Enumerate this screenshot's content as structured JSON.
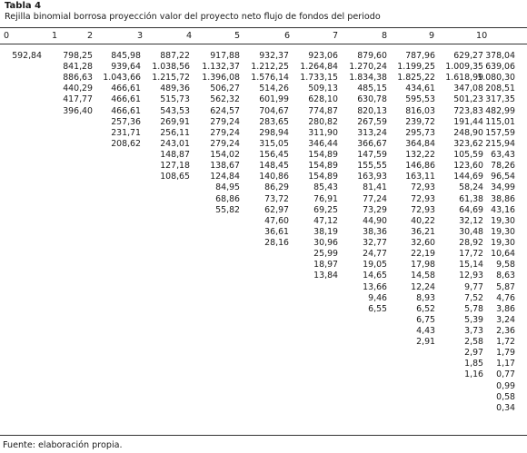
{
  "table": {
    "label": "Tabla 4",
    "caption": "Rejilla binomial borrosa proyección valor del proyecto neto flujo de fondos del periodo",
    "headers": [
      "0",
      "1",
      "2",
      "3",
      "4",
      "5",
      "6",
      "7",
      "8",
      "9",
      "10"
    ],
    "columns": [
      [
        "592,84"
      ],
      [
        "798,25",
        "841,28",
        "886,63",
        "440,29",
        "417,77",
        "396,40"
      ],
      [
        "845,98",
        "939,64",
        "1.043,66",
        "466,61",
        "466,61",
        "466,61",
        "257,36",
        "231,71",
        "208,62"
      ],
      [
        "887,22",
        "1.038,56",
        "1.215,72",
        "489,36",
        "515,73",
        "543,53",
        "269,91",
        "256,11",
        "243,01",
        "148,87",
        "127,18",
        "108,65"
      ],
      [
        "917,88",
        "1.132,37",
        "1.396,08",
        "506,27",
        "562,32",
        "624,57",
        "279,24",
        "279,24",
        "279,24",
        "154,02",
        "138,67",
        "124,84",
        "84,95",
        "68,86",
        "55,82"
      ],
      [
        "932,37",
        "1.212,25",
        "1.576,14",
        "514,26",
        "601,99",
        "704,67",
        "283,65",
        "298,94",
        "315,05",
        "156,45",
        "148,45",
        "140,86",
        "86,29",
        "73,72",
        "62,97",
        "47,60",
        "36,61",
        "28,16"
      ],
      [
        "923,06",
        "1.264,84",
        "1.733,15",
        "509,13",
        "628,10",
        "774,87",
        "280,82",
        "311,90",
        "346,44",
        "154,89",
        "154,89",
        "154,89",
        "85,43",
        "76,91",
        "69,25",
        "47,12",
        "38,19",
        "30,96",
        "25,99",
        "18,97",
        "13,84"
      ],
      [
        "879,60",
        "1.270,24",
        "1.834,38",
        "485,15",
        "630,78",
        "820,13",
        "267,59",
        "313,24",
        "366,67",
        "147,59",
        "155,55",
        "163,93",
        "81,41",
        "77,24",
        "73,29",
        "44,90",
        "38,36",
        "32,77",
        "24,77",
        "19,05",
        "14,65",
        "13,66",
        "9,46",
        "6,55"
      ],
      [
        "787,96",
        "1.199,25",
        "1.825,22",
        "434,61",
        "595,53",
        "816,03",
        "239,72",
        "295,73",
        "364,84",
        "132,22",
        "146,86",
        "163,11",
        "72,93",
        "72,93",
        "72,93",
        "40,22",
        "36,21",
        "32,60",
        "22,19",
        "17,98",
        "14,58",
        "12,24",
        "8,93",
        "6,52",
        "6,75",
        "4,43",
        "2,91"
      ],
      [
        "629,27",
        "1.009,35",
        "1.618,99",
        "347,08",
        "501,23",
        "723,83",
        "191,44",
        "248,90",
        "323,62",
        "105,59",
        "123,60",
        "144,69",
        "58,24",
        "61,38",
        "64,69",
        "32,12",
        "30,48",
        "28,92",
        "17,72",
        "15,14",
        "12,93",
        "9,77",
        "7,52",
        "5,78",
        "5,39",
        "3,73",
        "2,58",
        "2,97",
        "1,85",
        "1,16"
      ],
      [
        "378,04",
        "639,06",
        "1.080,30",
        "208,51",
        "317,35",
        "482,99",
        "115,01",
        "157,59",
        "215,94",
        "63,43",
        "78,26",
        "96,54",
        "34,99",
        "38,86",
        "43,16",
        "19,30",
        "19,30",
        "19,30",
        "10,64",
        "9,58",
        "8,63",
        "5,87",
        "4,76",
        "3,86",
        "3,24",
        "2,36",
        "1,72",
        "1,79",
        "1,17",
        "0,77",
        "0,99",
        "0,58",
        "0,34"
      ]
    ],
    "source": "Fuente: elaboración propia."
  }
}
